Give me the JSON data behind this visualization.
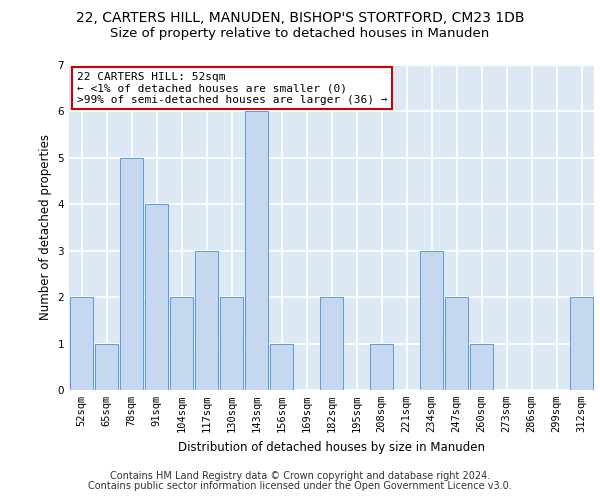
{
  "title_line1": "22, CARTERS HILL, MANUDEN, BISHOP'S STORTFORD, CM23 1DB",
  "title_line2": "Size of property relative to detached houses in Manuden",
  "xlabel": "Distribution of detached houses by size in Manuden",
  "ylabel": "Number of detached properties",
  "footer_line1": "Contains HM Land Registry data © Crown copyright and database right 2024.",
  "footer_line2": "Contains public sector information licensed under the Open Government Licence v3.0.",
  "annotation_line1": "22 CARTERS HILL: 52sqm",
  "annotation_line2": "← <1% of detached houses are smaller (0)",
  "annotation_line3": ">99% of semi-detached houses are larger (36) →",
  "bar_labels": [
    "52sqm",
    "65sqm",
    "78sqm",
    "91sqm",
    "104sqm",
    "117sqm",
    "130sqm",
    "143sqm",
    "156sqm",
    "169sqm",
    "182sqm",
    "195sqm",
    "208sqm",
    "221sqm",
    "234sqm",
    "247sqm",
    "260sqm",
    "273sqm",
    "286sqm",
    "299sqm",
    "312sqm"
  ],
  "bar_values": [
    2,
    1,
    5,
    4,
    2,
    3,
    2,
    6,
    1,
    0,
    2,
    0,
    1,
    0,
    3,
    2,
    1,
    0,
    0,
    0,
    2
  ],
  "bar_color": "#c5d8f0",
  "bar_edge_color": "#5b9bd5",
  "annotation_box_color": "#ffffff",
  "annotation_box_edge": "#cc0000",
  "background_color": "#ffffff",
  "plot_bg_color": "#dde8f5",
  "grid_color": "#ffffff",
  "ylim": [
    0,
    7
  ],
  "yticks": [
    0,
    1,
    2,
    3,
    4,
    5,
    6,
    7
  ],
  "title_fontsize": 10,
  "subtitle_fontsize": 9.5,
  "axis_label_fontsize": 8.5,
  "tick_fontsize": 7.5,
  "annotation_fontsize": 8,
  "footer_fontsize": 7
}
